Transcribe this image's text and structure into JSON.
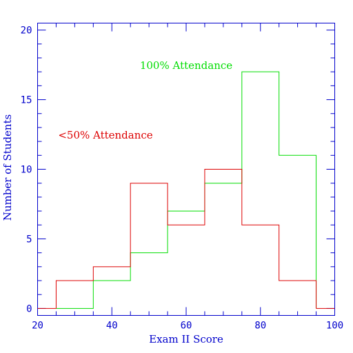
{
  "chart_data": {
    "type": "histogram",
    "xlabel": "Exam II Score",
    "ylabel": "Number of Students",
    "xlim": [
      20,
      100
    ],
    "ylim": [
      -0.5,
      20.5
    ],
    "x_ticks": [
      "20",
      "40",
      "60",
      "80",
      "100"
    ],
    "y_ticks": [
      "0",
      "5",
      "10",
      "15",
      "20"
    ],
    "bin_edges": [
      25,
      35,
      45,
      55,
      65,
      75,
      85,
      95
    ],
    "series": [
      {
        "name": "100% Attendance",
        "color": "#00dd00",
        "values": [
          0,
          2,
          4,
          7,
          9,
          17,
          11
        ]
      },
      {
        "name": "<50% Attendance",
        "color": "#dd0000",
        "values": [
          2,
          3,
          9,
          6,
          10,
          6,
          2
        ]
      }
    ],
    "axis_color": "#0000cc",
    "grid": false
  }
}
